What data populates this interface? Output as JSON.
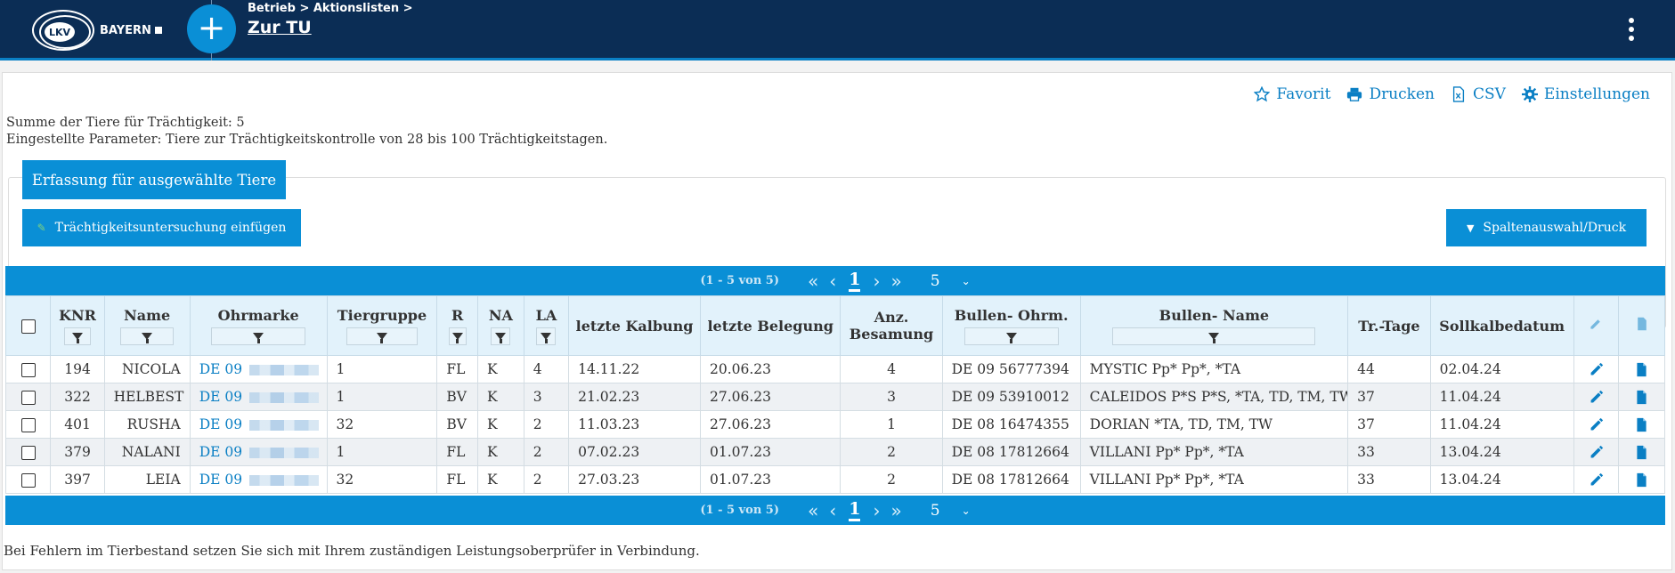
{
  "header": {
    "logo_text": "BAYERN",
    "logo_mark": "LKV",
    "breadcrumb": "Betrieb > Aktionslisten >",
    "title": "Zur TU",
    "add_icon": "plus-icon",
    "menu_icon": "kebab-icon"
  },
  "toolbar": {
    "favorit": "Favorit",
    "drucken": "Drucken",
    "csv": "CSV",
    "einstellungen": "Einstellungen"
  },
  "info": {
    "line1": "Summe der Tiere für Trächtigkeit: 5",
    "line2": "Eingestellte Parameter: Tiere zur Trächtigkeitskontrolle von 28 bis 100 Trächtigkeitstagen."
  },
  "actions": {
    "erfassung": "Erfassung für ausgewählte Tiere",
    "untersuchung": "Trächtigkeitsuntersuchung einfügen",
    "spalten": "Spaltenauswahl/Druck"
  },
  "pager": {
    "range": "(1 - 5 von 5)",
    "first": "«",
    "prev": "‹",
    "current": "1",
    "next": "›",
    "last": "»",
    "page_size": "5",
    "dropdown": "⌄"
  },
  "table": {
    "headers": {
      "knr": "KNR",
      "name": "Name",
      "ohrmarke": "Ohrmarke",
      "tiergruppe": "Tiergruppe",
      "r": "R",
      "na": "NA",
      "la": "LA",
      "kalbung": "letzte Kalbung",
      "belegung": "letzte Belegung",
      "anz": "Anz. Besamung",
      "bullen_ohrm": "Bullen- Ohrm.",
      "bullen_name": "Bullen- Name",
      "trtage": "Tr.-Tage",
      "soll": "Sollkalbedatum"
    },
    "rows": [
      {
        "knr": "194",
        "name": "NICOLA",
        "ohrmarke": "DE 09",
        "tiergruppe": "1",
        "r": "FL",
        "na": "K",
        "la": "4",
        "kalbung": "14.11.22",
        "belegung": "20.06.23",
        "anz": "4",
        "bullen_ohrm": "DE 09 56777394",
        "bullen_name": "MYSTIC Pp* Pp*, *TA",
        "trtage": "44",
        "soll": "02.04.24"
      },
      {
        "knr": "322",
        "name": "HELBEST",
        "ohrmarke": "DE 09",
        "tiergruppe": "1",
        "r": "BV",
        "na": "K",
        "la": "3",
        "kalbung": "21.02.23",
        "belegung": "27.06.23",
        "anz": "3",
        "bullen_ohrm": "DE 09 53910012",
        "bullen_name": "CALEIDOS P*S P*S, *TA, TD, TM, TW",
        "trtage": "37",
        "soll": "11.04.24"
      },
      {
        "knr": "401",
        "name": "RUSHA",
        "ohrmarke": "DE 09",
        "tiergruppe": "32",
        "r": "BV",
        "na": "K",
        "la": "2",
        "kalbung": "11.03.23",
        "belegung": "27.06.23",
        "anz": "1",
        "bullen_ohrm": "DE 08 16474355",
        "bullen_name": "DORIAN *TA, TD, TM, TW",
        "trtage": "37",
        "soll": "11.04.24"
      },
      {
        "knr": "379",
        "name": "NALANI",
        "ohrmarke": "DE 09",
        "tiergruppe": "1",
        "r": "FL",
        "na": "K",
        "la": "2",
        "kalbung": "07.02.23",
        "belegung": "01.07.23",
        "anz": "2",
        "bullen_ohrm": "DE 08 17812664",
        "bullen_name": "VILLANI Pp* Pp*, *TA",
        "trtage": "33",
        "soll": "13.04.24"
      },
      {
        "knr": "397",
        "name": "LEIA",
        "ohrmarke": "DE 09",
        "tiergruppe": "32",
        "r": "FL",
        "na": "K",
        "la": "2",
        "kalbung": "27.03.23",
        "belegung": "01.07.23",
        "anz": "2",
        "bullen_ohrm": "DE 08 17812664",
        "bullen_name": "VILLANI Pp* Pp*, *TA",
        "trtage": "33",
        "soll": "13.04.24"
      }
    ]
  },
  "footer": {
    "note": "Bei Fehlern im Tierbestand setzen Sie sich mit Ihrem zuständigen Leistungsoberprüfer in Verbindung."
  },
  "colors": {
    "header_bg": "#0b2d55",
    "accent": "#0a8fd6",
    "link": "#0a7fc4",
    "table_header_bg": "#e2f2fb"
  }
}
